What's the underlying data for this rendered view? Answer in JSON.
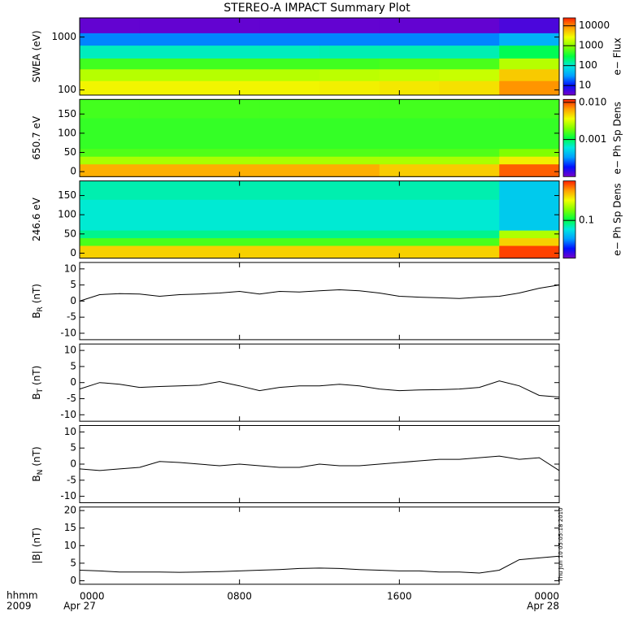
{
  "title": "STEREO-A IMPACT Summary Plot",
  "timestamp": "Thu Jun 10 05:05:18 2010",
  "colormap": [
    "#7800c8",
    "#0010ff",
    "#00a0ff",
    "#00e8e0",
    "#00ff40",
    "#80ff00",
    "#f0ff00",
    "#ffa000",
    "#ff2000"
  ],
  "x_axis": {
    "xlim": [
      0,
      24
    ],
    "xticks": [
      {
        "value": 0,
        "label": "0000"
      },
      {
        "value": 8,
        "label": "0800"
      },
      {
        "value": 16,
        "label": "1600"
      },
      {
        "value": 24,
        "label": "0000"
      }
    ],
    "label_1": "hhmm",
    "label_2": "2009",
    "dates": [
      "Apr 27",
      "Apr 28"
    ]
  },
  "chart_data": [
    {
      "type": "heatmap",
      "ylabel": "SWEA (eV)",
      "log_y": true,
      "ylim": [
        80,
        2300
      ],
      "yticks": [
        100,
        1000
      ],
      "x_edges": [
        0,
        3,
        6,
        9,
        12,
        15,
        18,
        21,
        24
      ],
      "y_edges": [
        80,
        150,
        250,
        400,
        700,
        1200,
        2300
      ],
      "values": [
        [
          3000,
          3000,
          3000,
          3000,
          3200,
          3500,
          3800,
          9000
        ],
        [
          1500,
          1500,
          1500,
          1500,
          1600,
          1700,
          1800,
          5000
        ],
        [
          500,
          500,
          500,
          500,
          500,
          550,
          550,
          1500
        ],
        [
          120,
          120,
          120,
          120,
          130,
          130,
          130,
          250
        ],
        [
          25,
          25,
          25,
          25,
          25,
          25,
          25,
          40
        ],
        [
          4,
          4,
          4,
          4,
          4,
          4,
          4,
          5
        ]
      ],
      "colorbar": {
        "label": "e− Flux",
        "log": true,
        "lim": [
          3.3,
          25000
        ],
        "ticks": [
          10,
          100,
          1000,
          10000
        ]
      }
    },
    {
      "type": "heatmap",
      "ylabel": "650.7 eV",
      "log_y": false,
      "ylim": [
        -13,
        188
      ],
      "yticks": [
        0,
        50,
        100,
        150
      ],
      "x_edges": [
        0,
        3,
        6,
        9,
        12,
        15,
        18,
        21,
        24
      ],
      "y_edges": [
        -13,
        20,
        40,
        60,
        100,
        140,
        188
      ],
      "values": [
        [
          0.006,
          0.006,
          0.006,
          0.006,
          0.006,
          0.005,
          0.005,
          0.009
        ],
        [
          0.0025,
          0.0025,
          0.0025,
          0.0025,
          0.0025,
          0.0025,
          0.0025,
          0.004
        ],
        [
          0.0016,
          0.0016,
          0.0016,
          0.0016,
          0.0016,
          0.0016,
          0.0016,
          0.002
        ],
        [
          0.0014,
          0.0014,
          0.0014,
          0.0014,
          0.0014,
          0.0014,
          0.0014,
          0.0014
        ],
        [
          0.0014,
          0.0014,
          0.0014,
          0.0014,
          0.0014,
          0.0014,
          0.0014,
          0.0014
        ],
        [
          0.0015,
          0.0015,
          0.0015,
          0.0015,
          0.0015,
          0.0015,
          0.0015,
          0.0015
        ]
      ],
      "colorbar": {
        "label": "e− Ph Sp Dens",
        "log": true,
        "lim": [
          0.0001,
          0.012
        ],
        "ticks": [
          0.001,
          {
            "value": 0.01,
            "label": "0.010"
          }
        ]
      }
    },
    {
      "type": "heatmap",
      "ylabel": "246.6 eV",
      "log_y": false,
      "ylim": [
        -13,
        188
      ],
      "yticks": [
        0,
        50,
        100,
        150
      ],
      "x_edges": [
        0,
        3,
        6,
        9,
        12,
        15,
        18,
        21,
        24
      ],
      "y_edges": [
        -13,
        20,
        40,
        60,
        100,
        140,
        188
      ],
      "values": [
        [
          0.2,
          0.2,
          0.2,
          0.2,
          0.2,
          0.2,
          0.2,
          0.28
        ],
        [
          0.12,
          0.12,
          0.12,
          0.12,
          0.12,
          0.12,
          0.12,
          0.2
        ],
        [
          0.09,
          0.09,
          0.09,
          0.09,
          0.09,
          0.09,
          0.09,
          0.15
        ],
        [
          0.08,
          0.08,
          0.08,
          0.08,
          0.08,
          0.08,
          0.08,
          0.07
        ],
        [
          0.08,
          0.08,
          0.08,
          0.08,
          0.08,
          0.08,
          0.08,
          0.07
        ],
        [
          0.085,
          0.085,
          0.085,
          0.085,
          0.085,
          0.085,
          0.085,
          0.07
        ]
      ],
      "colorbar": {
        "label": "e− Ph Sp Dens",
        "log": true,
        "lim": [
          0.035,
          0.3
        ],
        "ticks": [
          0.1
        ]
      }
    },
    {
      "type": "line",
      "ylabel": "B",
      "ylabel_sub": "R",
      "ylabel_unit": "(nT)",
      "ylim": [
        -12,
        12
      ],
      "yticks": [
        -10,
        -5,
        0,
        5,
        10
      ],
      "color": "#000000",
      "x": [
        0,
        1,
        2,
        3,
        4,
        5,
        6,
        7,
        8,
        9,
        10,
        11,
        12,
        13,
        14,
        15,
        16,
        17,
        18,
        19,
        20,
        21,
        22,
        23,
        24
      ],
      "values": [
        0,
        2,
        2.3,
        2.2,
        1.5,
        2,
        2.2,
        2.5,
        3,
        2.2,
        3,
        2.8,
        3.2,
        3.5,
        3.2,
        2.5,
        1.5,
        1.2,
        1,
        0.8,
        1.2,
        1.5,
        2.5,
        4,
        5
      ]
    },
    {
      "type": "line",
      "ylabel": "B",
      "ylabel_sub": "T",
      "ylabel_unit": "(nT)",
      "ylim": [
        -12,
        12
      ],
      "yticks": [
        -10,
        -5,
        0,
        5,
        10
      ],
      "color": "#000000",
      "x": [
        0,
        1,
        2,
        3,
        4,
        5,
        6,
        7,
        8,
        9,
        10,
        11,
        12,
        13,
        14,
        15,
        16,
        17,
        18,
        19,
        20,
        21,
        22,
        23,
        24
      ],
      "values": [
        -2,
        0,
        -0.5,
        -1.5,
        -1.2,
        -1,
        -0.8,
        0.3,
        -1,
        -2.5,
        -1.5,
        -1,
        -1,
        -0.5,
        -1,
        -2,
        -2.5,
        -2.3,
        -2.2,
        -2,
        -1.5,
        0.5,
        -1,
        -4,
        -4.5
      ]
    },
    {
      "type": "line",
      "ylabel": "B",
      "ylabel_sub": "N",
      "ylabel_unit": "(nT)",
      "ylim": [
        -12,
        12
      ],
      "yticks": [
        -10,
        -5,
        0,
        5,
        10
      ],
      "color": "#000000",
      "x": [
        0,
        1,
        2,
        3,
        4,
        5,
        6,
        7,
        8,
        9,
        10,
        11,
        12,
        13,
        14,
        15,
        16,
        17,
        18,
        19,
        20,
        21,
        22,
        23,
        24
      ],
      "values": [
        -1.5,
        -2,
        -1.5,
        -1,
        0.8,
        0.5,
        0,
        -0.5,
        0,
        -0.5,
        -1,
        -1,
        0,
        -0.5,
        -0.5,
        0,
        0.5,
        1,
        1.5,
        1.5,
        2,
        2.5,
        1.5,
        2,
        -2
      ]
    },
    {
      "type": "line",
      "ylabel": "|B|",
      "ylabel_unit": "(nT)",
      "ylim": [
        -1,
        21
      ],
      "yticks": [
        0,
        5,
        10,
        15,
        20
      ],
      "color": "#000000",
      "x": [
        0,
        1,
        2,
        3,
        4,
        5,
        6,
        7,
        8,
        9,
        10,
        11,
        12,
        13,
        14,
        15,
        16,
        17,
        18,
        19,
        20,
        21,
        22,
        23,
        24
      ],
      "values": [
        3,
        2.8,
        2.5,
        2.5,
        2.5,
        2.4,
        2.5,
        2.6,
        2.8,
        3,
        3.2,
        3.5,
        3.6,
        3.5,
        3.2,
        3,
        2.8,
        2.8,
        2.5,
        2.5,
        2.2,
        3,
        6,
        6.5,
        7
      ]
    }
  ]
}
